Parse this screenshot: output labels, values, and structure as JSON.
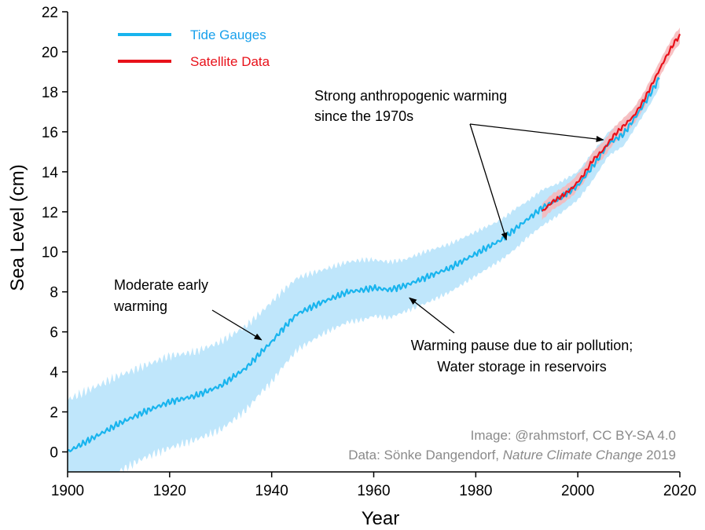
{
  "chart_data": {
    "type": "line",
    "xlabel": "Year",
    "ylabel": "Sea Level (cm)",
    "xlim": [
      1900,
      2020
    ],
    "ylim": [
      -1,
      22
    ],
    "x_ticks": [
      1900,
      1920,
      1940,
      1960,
      1980,
      2000,
      2020
    ],
    "y_ticks": [
      0,
      2,
      4,
      6,
      8,
      10,
      12,
      14,
      16,
      18,
      20,
      22
    ],
    "grid": false,
    "legend_position": "top-left",
    "series": [
      {
        "name": "Tide Gauges",
        "color": "#18b4ee",
        "band_color": "#bfe6fb",
        "x": [
          1900,
          1905,
          1910,
          1915,
          1920,
          1925,
          1930,
          1935,
          1938,
          1940,
          1942,
          1945,
          1950,
          1955,
          1958,
          1960,
          1963,
          1966,
          1970,
          1975,
          1980,
          1985,
          1988,
          1990,
          1993,
          1996,
          2000,
          2003,
          2006,
          2009,
          2012,
          2014,
          2016
        ],
        "y": [
          0.0,
          0.7,
          1.4,
          2.0,
          2.5,
          2.8,
          3.3,
          4.2,
          5.0,
          5.5,
          6.1,
          6.9,
          7.5,
          8.0,
          8.1,
          8.2,
          8.1,
          8.3,
          8.7,
          9.2,
          9.9,
          10.6,
          11.2,
          11.6,
          12.2,
          12.6,
          13.3,
          14.3,
          15.4,
          15.9,
          17.0,
          17.8,
          18.7
        ],
        "uncertainty": [
          2.6,
          2.5,
          2.4,
          2.3,
          2.3,
          2.2,
          2.2,
          2.1,
          2.0,
          2.0,
          1.9,
          1.8,
          1.6,
          1.5,
          1.5,
          1.4,
          1.4,
          1.3,
          1.3,
          1.2,
          1.1,
          1.0,
          1.0,
          0.9,
          0.9,
          0.8,
          0.7,
          0.7,
          0.6,
          0.6,
          0.5,
          0.5,
          0.5
        ]
      },
      {
        "name": "Satellite Data",
        "color": "#e8111a",
        "band_color": "#f7b6b8",
        "x": [
          1993,
          1995,
          1997,
          1999,
          2001,
          2003,
          2005,
          2007,
          2009,
          2011,
          2013,
          2015,
          2017,
          2019,
          2020
        ],
        "y": [
          12.0,
          12.5,
          12.8,
          13.2,
          13.8,
          14.6,
          15.1,
          15.8,
          16.3,
          16.8,
          17.6,
          18.6,
          19.6,
          20.5,
          20.8
        ],
        "uncertainty": [
          0.4,
          0.4,
          0.4,
          0.4,
          0.4,
          0.4,
          0.4,
          0.4,
          0.4,
          0.4,
          0.4,
          0.4,
          0.4,
          0.4,
          0.4
        ]
      }
    ],
    "annotations": [
      {
        "lines": [
          "Strong anthropogenic warming",
          "since the 1970s"
        ],
        "arrows_to": [
          [
            1986,
            10.6
          ],
          [
            2005,
            15.6
          ]
        ]
      },
      {
        "lines": [
          "Moderate early",
          "warming"
        ],
        "arrows_to": [
          [
            1938,
            5.6
          ]
        ]
      },
      {
        "lines": [
          "Warming pause due to air pollution;",
          "Water storage in reservoirs"
        ],
        "arrows_to": [
          [
            1967,
            7.7
          ]
        ]
      }
    ],
    "credits": [
      "Image: @rahmstorf, CC BY-SA 4.0",
      "Data: Sönke Dangendorf,",
      "Nature Climate Change",
      "2019"
    ]
  }
}
